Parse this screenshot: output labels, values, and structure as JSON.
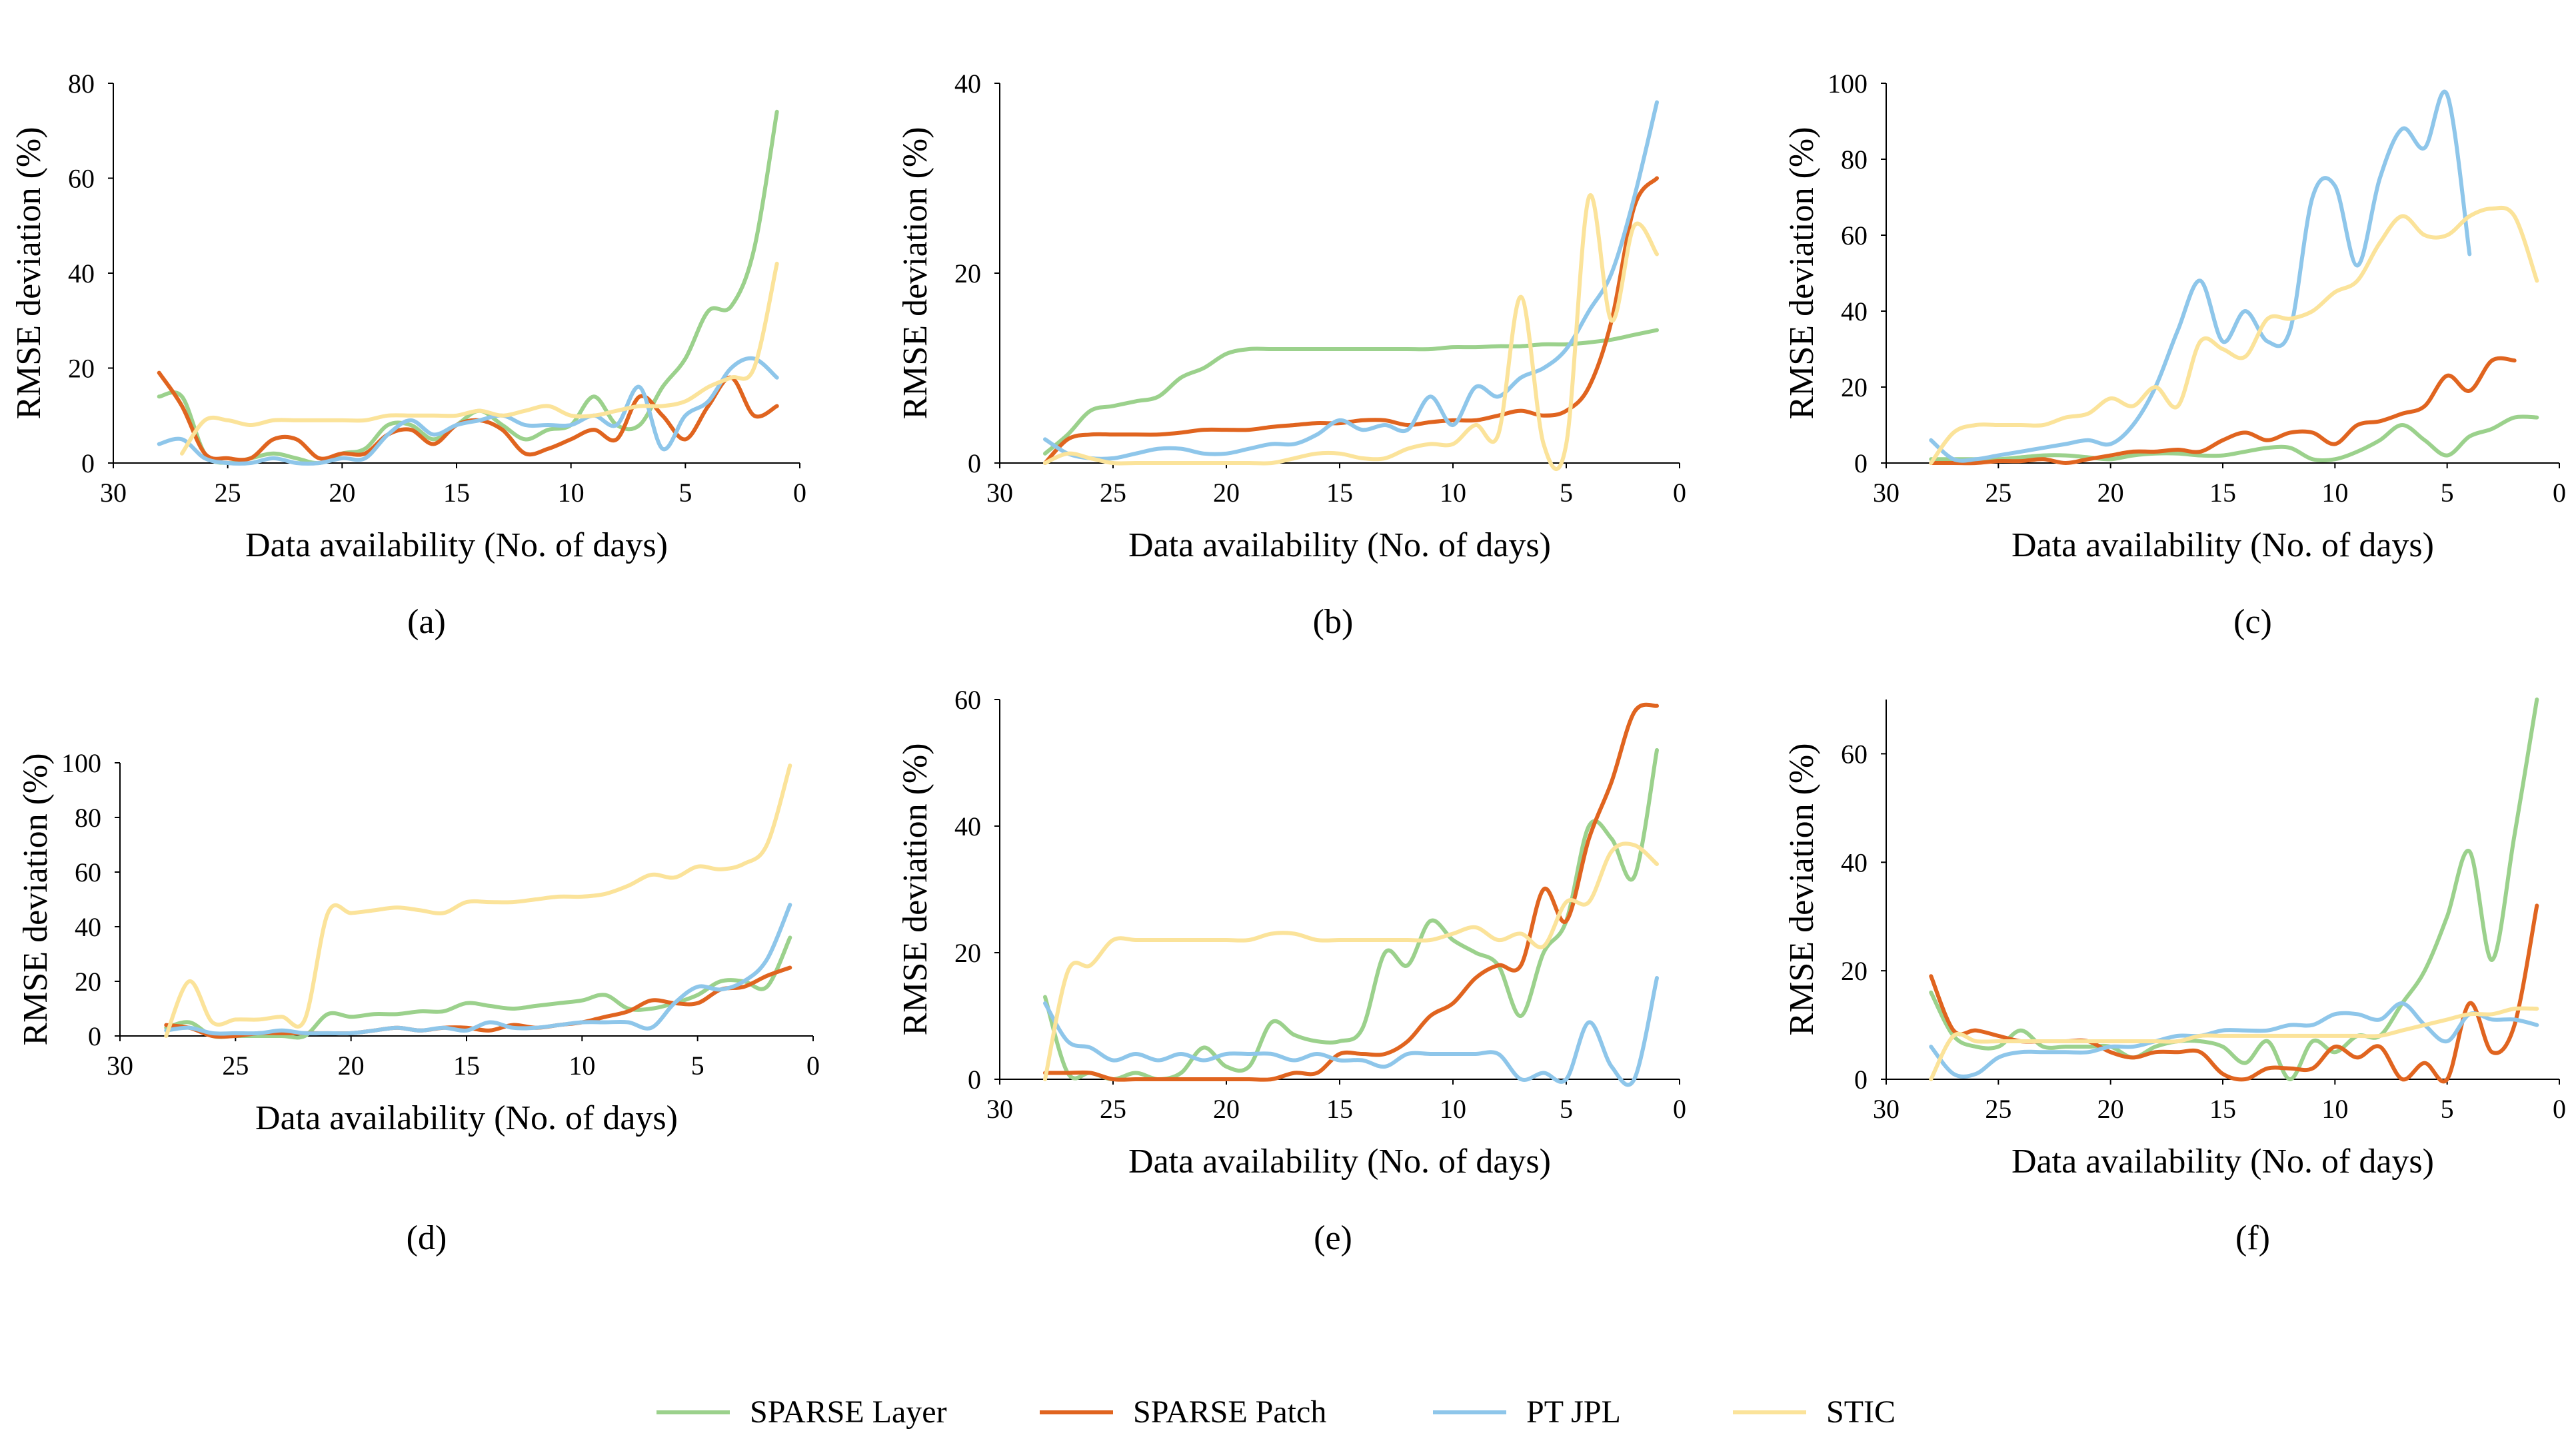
{
  "colors": {
    "SPARSE Layer": "#9bd18c",
    "SPARSE Patch": "#e0641f",
    "PT JPL": "#8ec6ea",
    "STIC": "#fbe39a",
    "axis": "#000000"
  },
  "legend": [
    "SPARSE Layer",
    "SPARSE Patch",
    "PT JPL",
    "STIC"
  ],
  "chart_data": [
    {
      "type": "line",
      "panel_label": "(a)",
      "xlabel": "Data availability (No. of days)",
      "ylabel": "RMSE deviation (%)",
      "xlim": [
        30,
        0
      ],
      "xticks": [
        30,
        25,
        20,
        15,
        10,
        5,
        0
      ],
      "ylim": [
        0,
        80
      ],
      "yticks": [
        0,
        20,
        40,
        60,
        80
      ],
      "x": [
        28,
        27,
        26,
        25,
        24,
        23,
        22,
        21,
        20,
        19,
        18,
        17,
        16,
        15,
        14,
        13,
        12,
        11,
        10,
        9,
        8,
        7,
        6,
        5,
        4,
        3,
        2,
        1
      ],
      "series": [
        {
          "name": "SPARSE Layer",
          "values": [
            14,
            14,
            2,
            0,
            1,
            2,
            1,
            0,
            2,
            3,
            8,
            8,
            5,
            8,
            11,
            8,
            5,
            7,
            8,
            14,
            8,
            8,
            16,
            22,
            32,
            33,
            45,
            74
          ]
        },
        {
          "name": "SPARSE Patch",
          "values": [
            19,
            12,
            2,
            1,
            1,
            5,
            5,
            1,
            2,
            2,
            6,
            7,
            4,
            8,
            9,
            7,
            2,
            3,
            5,
            7,
            5,
            14,
            10,
            5,
            12,
            18,
            10,
            12
          ]
        },
        {
          "name": "PT JPL",
          "values": [
            4,
            5,
            1,
            0,
            0,
            1,
            0,
            0,
            1,
            1,
            6,
            9,
            6,
            8,
            9,
            10,
            8,
            8,
            8,
            10,
            8,
            16,
            3,
            10,
            13,
            20,
            22,
            18
          ]
        },
        {
          "name": "STIC",
          "values": [
            null,
            2,
            9,
            9,
            8,
            9,
            9,
            9,
            9,
            9,
            10,
            10,
            10,
            10,
            11,
            10,
            11,
            12,
            10,
            10,
            11,
            12,
            12,
            13,
            16,
            18,
            20,
            42
          ]
        }
      ]
    },
    {
      "type": "line",
      "panel_label": "(b)",
      "xlabel": "Data availability (No. of days)",
      "ylabel": "RMSE deviation (%)",
      "xlim": [
        30,
        0
      ],
      "xticks": [
        30,
        25,
        20,
        15,
        10,
        5,
        0
      ],
      "ylim": [
        0,
        40
      ],
      "yticks": [
        0,
        20,
        40
      ],
      "x": [
        28,
        27,
        26,
        25,
        24,
        23,
        22,
        21,
        20,
        19,
        18,
        17,
        16,
        15,
        14,
        13,
        12,
        11,
        10,
        9,
        8,
        7,
        6,
        5,
        4,
        3,
        2,
        1
      ],
      "series": [
        {
          "name": "SPARSE Layer",
          "values": [
            1,
            3,
            5.5,
            6,
            6.5,
            7,
            9,
            10,
            11.5,
            12,
            12,
            12,
            12,
            12,
            12,
            12,
            12,
            12,
            12.2,
            12.2,
            12.3,
            12.3,
            12.5,
            12.5,
            12.7,
            13,
            13.5,
            14
          ]
        },
        {
          "name": "SPARSE Patch",
          "values": [
            0,
            2.5,
            3,
            3,
            3,
            3,
            3.2,
            3.5,
            3.5,
            3.5,
            3.8,
            4,
            4.2,
            4.2,
            4.5,
            4.5,
            4,
            4.3,
            4.5,
            4.5,
            5,
            5.5,
            5,
            5.5,
            8,
            15,
            27,
            30
          ]
        },
        {
          "name": "PT JPL",
          "values": [
            2.5,
            1,
            0.5,
            0.5,
            1,
            1.5,
            1.5,
            1,
            1,
            1.5,
            2,
            2,
            3,
            4.5,
            3.5,
            4,
            3.5,
            7,
            4,
            8,
            7,
            9,
            10,
            12,
            16,
            20,
            28,
            38
          ]
        },
        {
          "name": "STIC",
          "values": [
            0,
            1,
            0.5,
            0,
            0,
            0,
            0,
            0,
            0,
            0,
            0,
            0.5,
            1,
            1,
            0.5,
            0.5,
            1.5,
            2,
            2,
            4,
            3,
            17.5,
            2,
            2,
            28,
            15,
            25,
            22
          ]
        }
      ]
    },
    {
      "type": "line",
      "panel_label": "(c)",
      "xlabel": "Data availability (No. of days)",
      "ylabel": "RMSE deviation (%)",
      "xlim": [
        30,
        0
      ],
      "xticks": [
        30,
        25,
        20,
        15,
        10,
        5,
        0
      ],
      "ylim": [
        0,
        100
      ],
      "yticks": [
        0,
        20,
        40,
        60,
        80,
        100
      ],
      "x": [
        28,
        27,
        26,
        25,
        24,
        23,
        22,
        21,
        20,
        19,
        18,
        17,
        16,
        15,
        14,
        13,
        12,
        11,
        10,
        9,
        8,
        7,
        6,
        5,
        4,
        3,
        2,
        1
      ],
      "series": [
        {
          "name": "SPARSE Layer",
          "values": [
            1,
            1,
            1,
            1,
            1.5,
            2,
            2,
            1.5,
            1,
            2,
            2.5,
            2.5,
            2,
            2,
            3,
            4,
            4,
            1,
            1,
            3,
            6,
            10,
            6,
            2,
            7,
            9,
            12,
            12
          ]
        },
        {
          "name": "SPARSE Patch",
          "values": [
            0,
            0,
            0,
            0.5,
            0.5,
            1,
            0,
            1,
            2,
            3,
            3,
            3.5,
            3,
            6,
            8,
            6,
            8,
            8,
            5,
            10,
            11,
            13,
            15,
            23,
            19,
            27,
            27,
            null
          ]
        },
        {
          "name": "PT JPL",
          "values": [
            6,
            1,
            1,
            2,
            3,
            4,
            5,
            6,
            5,
            10,
            20,
            35,
            48,
            32,
            40,
            32,
            35,
            70,
            73,
            52,
            75,
            88,
            83,
            97,
            55,
            null,
            null,
            null
          ]
        },
        {
          "name": "STIC",
          "values": [
            0,
            8,
            10,
            10,
            10,
            10,
            12,
            13,
            17,
            15,
            20,
            15,
            32,
            30,
            28,
            38,
            38,
            40,
            45,
            48,
            58,
            65,
            60,
            60,
            65,
            67,
            65,
            48
          ]
        }
      ]
    },
    {
      "type": "line",
      "panel_label": "(d)",
      "xlabel": "Data availability (No. of days)",
      "ylabel": "RMSE deviation (%)",
      "xlim": [
        30,
        0
      ],
      "xticks": [
        30,
        25,
        20,
        15,
        10,
        5,
        0
      ],
      "ylim": [
        0,
        100
      ],
      "yticks": [
        0,
        20,
        40,
        60,
        80,
        100
      ],
      "x": [
        28,
        27,
        26,
        25,
        24,
        23,
        22,
        21,
        20,
        19,
        18,
        17,
        16,
        15,
        14,
        13,
        12,
        11,
        10,
        9,
        8,
        7,
        6,
        5,
        4,
        3,
        2,
        1
      ],
      "series": [
        {
          "name": "SPARSE Layer",
          "values": [
            3,
            5,
            0,
            0,
            0,
            0,
            0,
            8,
            7,
            8,
            8,
            9,
            9,
            12,
            11,
            10,
            11,
            12,
            13,
            15,
            10,
            10,
            12,
            15,
            20,
            20,
            18,
            36
          ]
        },
        {
          "name": "SPARSE Patch",
          "values": [
            4,
            3,
            0,
            0,
            1,
            1,
            1,
            1,
            1,
            2,
            3,
            2,
            3,
            3,
            2,
            4,
            3,
            4,
            5,
            7,
            9,
            13,
            12,
            12,
            17,
            18,
            22,
            25
          ]
        },
        {
          "name": "PT JPL",
          "values": [
            2,
            3,
            1,
            1,
            1,
            2,
            1,
            1,
            1,
            2,
            3,
            2,
            3,
            2,
            5,
            3,
            3,
            4,
            5,
            5,
            5,
            3,
            12,
            18,
            17,
            20,
            28,
            48
          ]
        },
        {
          "name": "STIC",
          "values": [
            0,
            20,
            5,
            6,
            6,
            7,
            6,
            45,
            45,
            46,
            47,
            46,
            45,
            49,
            49,
            49,
            50,
            51,
            51,
            52,
            55,
            59,
            58,
            62,
            61,
            63,
            70,
            99
          ]
        }
      ]
    },
    {
      "type": "line",
      "panel_label": "(e)",
      "xlabel": "Data availability (No. of days)",
      "ylabel": "RMSE deviation (%)",
      "xlim": [
        30,
        0
      ],
      "xticks": [
        30,
        25,
        20,
        15,
        10,
        5,
        0
      ],
      "ylim": [
        0,
        60
      ],
      "yticks": [
        0,
        20,
        40,
        60
      ],
      "x": [
        28,
        27,
        26,
        25,
        24,
        23,
        22,
        21,
        20,
        19,
        18,
        17,
        16,
        15,
        14,
        13,
        12,
        11,
        10,
        9,
        8,
        7,
        6,
        5,
        4,
        3,
        2,
        1
      ],
      "series": [
        {
          "name": "SPARSE Layer",
          "values": [
            13,
            1,
            1,
            0,
            1,
            0,
            1,
            5,
            2,
            2,
            9,
            7,
            6,
            6,
            8,
            20,
            18,
            25,
            22,
            20,
            18,
            10,
            20,
            25,
            40,
            38,
            32,
            52
          ]
        },
        {
          "name": "SPARSE Patch",
          "values": [
            1,
            1,
            1,
            0,
            0,
            0,
            0,
            0,
            0,
            0,
            0,
            1,
            1,
            4,
            4,
            4,
            6,
            10,
            12,
            16,
            18,
            18,
            30,
            25,
            38,
            47,
            58,
            59
          ]
        },
        {
          "name": "PT JPL",
          "values": [
            12,
            6,
            5,
            3,
            4,
            3,
            4,
            3,
            4,
            4,
            4,
            3,
            4,
            3,
            3,
            2,
            4,
            4,
            4,
            4,
            4,
            0,
            1,
            0,
            9,
            2,
            0,
            16
          ]
        },
        {
          "name": "STIC",
          "values": [
            0,
            17,
            18,
            22,
            22,
            22,
            22,
            22,
            22,
            22,
            23,
            23,
            22,
            22,
            22,
            22,
            22,
            22,
            23,
            24,
            22,
            23,
            21,
            28,
            28,
            36,
            37,
            34
          ]
        }
      ]
    },
    {
      "type": "line",
      "panel_label": "(f)",
      "xlabel": "Data availability (No. of days)",
      "ylabel": "RMSE deviation (%)",
      "xlim": [
        30,
        0
      ],
      "xticks": [
        30,
        25,
        20,
        15,
        10,
        5,
        0
      ],
      "ylim": [
        0,
        70
      ],
      "yticks": [
        0,
        20,
        40,
        60
      ],
      "x": [
        28,
        27,
        26,
        25,
        24,
        23,
        22,
        21,
        20,
        19,
        18,
        17,
        16,
        15,
        14,
        13,
        12,
        11,
        10,
        9,
        8,
        7,
        6,
        5,
        4,
        3,
        2,
        1
      ],
      "series": [
        {
          "name": "SPARSE Layer",
          "values": [
            16,
            8,
            6,
            6,
            9,
            6,
            6,
            6,
            6,
            4,
            6,
            7,
            7,
            6,
            3,
            7,
            0,
            7,
            5,
            8,
            8,
            14,
            20,
            30,
            42,
            22,
            45,
            70
          ]
        },
        {
          "name": "SPARSE Patch",
          "values": [
            19,
            9,
            9,
            8,
            7,
            7,
            7,
            7,
            5,
            4,
            5,
            5,
            5,
            1,
            0,
            2,
            2,
            2,
            6,
            4,
            6,
            0,
            3,
            0,
            14,
            5,
            10,
            32
          ]
        },
        {
          "name": "PT JPL",
          "values": [
            6,
            1,
            1,
            4,
            5,
            5,
            5,
            5,
            6,
            6,
            7,
            8,
            8,
            9,
            9,
            9,
            10,
            10,
            12,
            12,
            11,
            14,
            10,
            7,
            12,
            11,
            11,
            10
          ]
        },
        {
          "name": "STIC",
          "values": [
            0,
            8,
            7,
            7,
            7,
            7,
            7,
            7,
            7,
            7,
            7,
            7,
            8,
            8,
            8,
            8,
            8,
            8,
            8,
            8,
            8,
            9,
            10,
            11,
            12,
            12,
            13,
            13
          ]
        }
      ]
    }
  ]
}
